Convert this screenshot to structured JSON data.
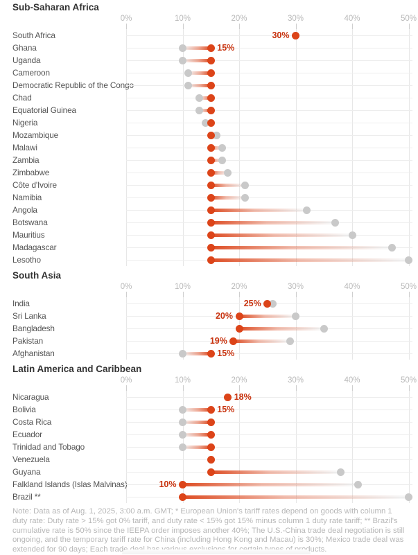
{
  "note": {
    "text": "Note: Data as of Aug. 1, 2025, 3:00 a.m. GMT; * European Union's tariff rates depend on goods with column 1 duty rate: Duty rate > 15% got 0% tariff, and duty rate < 15% got 15% minus column 1 duty rate tariff; ** Brazil's cumulative rate is 50% since the IEEPA order imposes another 40%; The U.S.-China trade deal negotiation is still ongoing, and the temporary tariff rate for China (including Hong Kong and Macau) is 30%; Mexico trade deal was extended for 90 days; Each trade deal has various exclusions for certain types of products."
  },
  "chart_data": {
    "type": "dumbbell",
    "unit": "percent tariff rate",
    "axis": {
      "tick_labels": [
        "0%",
        "10%",
        "20%",
        "30%",
        "40%",
        "50%"
      ],
      "tick_values": [
        0,
        10,
        20,
        30,
        40,
        50
      ],
      "min": 0,
      "max": 50,
      "grid": true,
      "axis_position": "top"
    },
    "colors": {
      "current_dot": "#dc4419",
      "previous_dot": "#c9c9c9",
      "value_label": "#c8330f",
      "gridline": "#e7e7e7",
      "row_line": "#ededed"
    },
    "sections": [
      {
        "title": "Sub-Saharan Africa",
        "rows": [
          {
            "country": "South Africa",
            "current": 30,
            "previous": 30,
            "value_label": "30%",
            "label_side": "left"
          },
          {
            "country": "Ghana",
            "current": 15,
            "previous": 10,
            "value_label": "15%",
            "label_side": "right"
          },
          {
            "country": "Uganda",
            "current": 15,
            "previous": 10,
            "value_label": null,
            "label_side": null
          },
          {
            "country": "Cameroon",
            "current": 15,
            "previous": 11,
            "value_label": null,
            "label_side": null
          },
          {
            "country": "Democratic Republic of the Congo",
            "current": 15,
            "previous": 11,
            "value_label": null,
            "label_side": null
          },
          {
            "country": "Chad",
            "current": 15,
            "previous": 13,
            "value_label": null,
            "label_side": null
          },
          {
            "country": "Equatorial Guinea",
            "current": 15,
            "previous": 13,
            "value_label": null,
            "label_side": null
          },
          {
            "country": "Nigeria",
            "current": 15,
            "previous": 14,
            "value_label": null,
            "label_side": null
          },
          {
            "country": "Mozambique",
            "current": 15,
            "previous": 16,
            "value_label": null,
            "label_side": null
          },
          {
            "country": "Malawi",
            "current": 15,
            "previous": 17,
            "value_label": null,
            "label_side": null
          },
          {
            "country": "Zambia",
            "current": 15,
            "previous": 17,
            "value_label": null,
            "label_side": null
          },
          {
            "country": "Zimbabwe",
            "current": 15,
            "previous": 18,
            "value_label": null,
            "label_side": null
          },
          {
            "country": "Côte d'Ivoire",
            "current": 15,
            "previous": 21,
            "value_label": null,
            "label_side": null
          },
          {
            "country": "Namibia",
            "current": 15,
            "previous": 21,
            "value_label": null,
            "label_side": null
          },
          {
            "country": "Angola",
            "current": 15,
            "previous": 32,
            "value_label": null,
            "label_side": null
          },
          {
            "country": "Botswana",
            "current": 15,
            "previous": 37,
            "value_label": null,
            "label_side": null
          },
          {
            "country": "Mauritius",
            "current": 15,
            "previous": 40,
            "value_label": null,
            "label_side": null
          },
          {
            "country": "Madagascar",
            "current": 15,
            "previous": 47,
            "value_label": null,
            "label_side": null
          },
          {
            "country": "Lesotho",
            "current": 15,
            "previous": 50,
            "value_label": null,
            "label_side": null
          }
        ]
      },
      {
        "title": "South Asia",
        "rows": [
          {
            "country": "India",
            "current": 25,
            "previous": 26,
            "value_label": "25%",
            "label_side": "left"
          },
          {
            "country": "Sri Lanka",
            "current": 20,
            "previous": 30,
            "value_label": "20%",
            "label_side": "left"
          },
          {
            "country": "Bangladesh",
            "current": 20,
            "previous": 35,
            "value_label": null,
            "label_side": null
          },
          {
            "country": "Pakistan",
            "current": 19,
            "previous": 29,
            "value_label": "19%",
            "label_side": "left"
          },
          {
            "country": "Afghanistan",
            "current": 15,
            "previous": 10,
            "value_label": "15%",
            "label_side": "right"
          }
        ]
      },
      {
        "title": "Latin America and Caribbean",
        "rows": [
          {
            "country": "Nicaragua",
            "current": 18,
            "previous": 18,
            "value_label": "18%",
            "label_side": "right"
          },
          {
            "country": "Bolivia",
            "current": 15,
            "previous": 10,
            "value_label": "15%",
            "label_side": "right"
          },
          {
            "country": "Costa Rica",
            "current": 15,
            "previous": 10,
            "value_label": null,
            "label_side": null
          },
          {
            "country": "Ecuador",
            "current": 15,
            "previous": 10,
            "value_label": null,
            "label_side": null
          },
          {
            "country": "Trinidad and Tobago",
            "current": 15,
            "previous": 10,
            "value_label": null,
            "label_side": null
          },
          {
            "country": "Venezuela",
            "current": 15,
            "previous": 15,
            "value_label": null,
            "label_side": null
          },
          {
            "country": "Guyana",
            "current": 15,
            "previous": 38,
            "value_label": null,
            "label_side": null
          },
          {
            "country": "Falkland Islands (Islas Malvinas)",
            "current": 10,
            "previous": 41,
            "value_label": "10%",
            "label_side": "left"
          },
          {
            "country": "Brazil **",
            "current": 10,
            "previous": 50,
            "value_label": null,
            "label_side": null
          }
        ]
      }
    ]
  }
}
